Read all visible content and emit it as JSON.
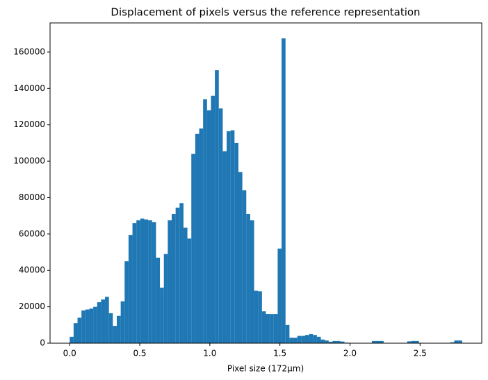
{
  "chart_data": {
    "type": "histogram",
    "title": "Displacement of pixels versus the reference representation",
    "x_label": "Pixel size (172µm)",
    "color": "#1f77b4",
    "bins": [
      0,
      0.028,
      0.056,
      0.084,
      0.112,
      0.14,
      0.168,
      0.196,
      0.224,
      0.252,
      0.28,
      0.308,
      0.336,
      0.364,
      0.392,
      0.42,
      0.448,
      0.476,
      0.504,
      0.532,
      0.56,
      0.588,
      0.616,
      0.644,
      0.672,
      0.7,
      0.728,
      0.756,
      0.784,
      0.812,
      0.84,
      0.868,
      0.896,
      0.924,
      0.952,
      0.98,
      1.008,
      1.036,
      1.064,
      1.092,
      1.12,
      1.148,
      1.176,
      1.204,
      1.232,
      1.26,
      1.288,
      1.316,
      1.344,
      1.372,
      1.4,
      1.428,
      1.456,
      1.484,
      1.512,
      1.54,
      1.568,
      1.596,
      1.624,
      1.652,
      1.68,
      1.708,
      1.736,
      1.764,
      1.792,
      1.82,
      1.848,
      1.876,
      1.904,
      1.932,
      1.96,
      1.988,
      2.016,
      2.044,
      2.072,
      2.1,
      2.128,
      2.156,
      2.184,
      2.212,
      2.24,
      2.268,
      2.296,
      2.324,
      2.352,
      2.38,
      2.408,
      2.436,
      2.464,
      2.492,
      2.52,
      2.548,
      2.576,
      2.604,
      2.632,
      2.66,
      2.688,
      2.716,
      2.744,
      2.772,
      2.8
    ],
    "values": [
      3500,
      11000,
      14000,
      18000,
      18500,
      19000,
      20000,
      22500,
      24000,
      25500,
      16500,
      9500,
      15000,
      23000,
      45000,
      59500,
      66000,
      67500,
      68500,
      68000,
      67500,
      66500,
      47000,
      30500,
      49000,
      67500,
      71000,
      74500,
      77000,
      63500,
      57500,
      104000,
      115000,
      118000,
      134000,
      128000,
      136000,
      150000,
      129000,
      105500,
      116500,
      117000,
      110000,
      94000,
      84000,
      71000,
      67500,
      28800,
      28500,
      17500,
      16000,
      16000,
      16000,
      52000,
      167500,
      10000,
      3000,
      3000,
      4000,
      4000,
      4500,
      5000,
      4500,
      3500,
      2000,
      1500,
      800,
      1200,
      1200,
      900,
      300,
      0,
      0,
      0,
      0,
      0,
      0,
      1200,
      1200,
      1200,
      0,
      0,
      0,
      0,
      0,
      0,
      1000,
      1200,
      1200,
      0,
      0,
      0,
      0,
      0,
      0,
      0,
      0,
      500,
      1500,
      1500
    ],
    "xlim": [
      -0.14,
      2.94
    ],
    "ylim": [
      0,
      176000
    ],
    "xticks": [
      {
        "value": 0,
        "label": "0.0"
      },
      0.5,
      {
        "value": 1,
        "label": "1.0"
      },
      1.5,
      {
        "value": 2,
        "label": "2.0"
      },
      2.5
    ],
    "yticks": [
      0,
      20000,
      40000,
      60000,
      80000,
      100000,
      120000,
      140000,
      160000
    ]
  }
}
